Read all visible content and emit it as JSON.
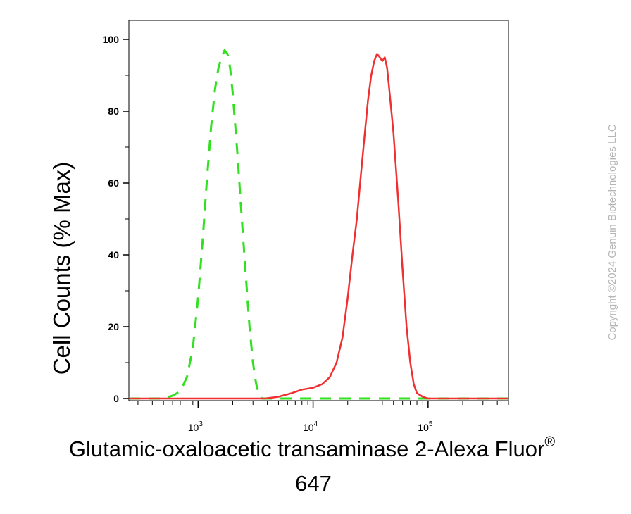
{
  "chart_data": {
    "type": "line",
    "title": "",
    "xlabel_line1": "Glutamic-oxaloacetic transaminase 2-Alexa Fluor",
    "xlabel_registered": "®",
    "xlabel_line2": "647",
    "ylabel": "Cell Counts (% Max)",
    "x_scale": "log",
    "xlim": [
      250,
      500000
    ],
    "ylim": [
      0,
      100
    ],
    "grid": false,
    "y_ticks": [
      0,
      20,
      40,
      60,
      80,
      100
    ],
    "y_tick_labels": [
      "0",
      "20",
      "40",
      "60",
      "80",
      "100"
    ],
    "x_major_ticks": [
      {
        "value": 1000,
        "base": "10",
        "exp": "3"
      },
      {
        "value": 10000,
        "base": "10",
        "exp": "4"
      },
      {
        "value": 100000,
        "base": "10",
        "exp": "5"
      }
    ],
    "series": [
      {
        "color": "#31e01f",
        "dash": "dashed",
        "points": [
          [
            250,
            0
          ],
          [
            500,
            0
          ],
          [
            600,
            0.8
          ],
          [
            700,
            2
          ],
          [
            800,
            6
          ],
          [
            900,
            14
          ],
          [
            1000,
            28
          ],
          [
            1100,
            45
          ],
          [
            1200,
            62
          ],
          [
            1300,
            76
          ],
          [
            1400,
            86
          ],
          [
            1500,
            92
          ],
          [
            1600,
            95
          ],
          [
            1700,
            97
          ],
          [
            1800,
            96
          ],
          [
            1900,
            92
          ],
          [
            2000,
            85
          ],
          [
            2200,
            68
          ],
          [
            2400,
            50
          ],
          [
            2600,
            34
          ],
          [
            2800,
            20
          ],
          [
            3000,
            10
          ],
          [
            3200,
            4
          ],
          [
            3400,
            1
          ],
          [
            3600,
            0
          ],
          [
            500000,
            0
          ]
        ]
      },
      {
        "color": "#f03030",
        "dash": "solid",
        "points": [
          [
            250,
            0
          ],
          [
            3800,
            0
          ],
          [
            5000,
            0.5
          ],
          [
            6500,
            1.5
          ],
          [
            8000,
            2.5
          ],
          [
            10000,
            3
          ],
          [
            12000,
            4
          ],
          [
            14000,
            6
          ],
          [
            16000,
            10
          ],
          [
            18000,
            17
          ],
          [
            20000,
            28
          ],
          [
            22000,
            40
          ],
          [
            24000,
            50
          ],
          [
            26000,
            62
          ],
          [
            28000,
            73
          ],
          [
            30000,
            83
          ],
          [
            32000,
            90
          ],
          [
            34000,
            94
          ],
          [
            36000,
            96
          ],
          [
            38000,
            95
          ],
          [
            40000,
            94
          ],
          [
            42000,
            95
          ],
          [
            44000,
            92
          ],
          [
            46000,
            86
          ],
          [
            50000,
            74
          ],
          [
            55000,
            55
          ],
          [
            60000,
            36
          ],
          [
            65000,
            20
          ],
          [
            70000,
            10
          ],
          [
            75000,
            4
          ],
          [
            80000,
            1.5
          ],
          [
            90000,
            0.5
          ],
          [
            100000,
            0
          ],
          [
            500000,
            0
          ]
        ]
      }
    ]
  },
  "watermark": "Copyright ©2024 Genuin Biotechnologies LLC"
}
